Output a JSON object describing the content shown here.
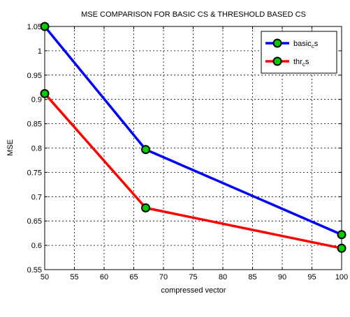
{
  "chart_data": {
    "type": "line",
    "title": "MSE COMPARISON FOR BASIC CS & THRESHOLD BASED CS",
    "xlabel": "compressed vector",
    "ylabel": "MSE",
    "xlim": [
      50,
      100
    ],
    "ylim": [
      0.55,
      1.05
    ],
    "xticks": [
      50,
      55,
      60,
      65,
      70,
      75,
      80,
      85,
      90,
      95,
      100
    ],
    "yticks": [
      0.55,
      0.6,
      0.65,
      0.7,
      0.75,
      0.8,
      0.85,
      0.9,
      0.95,
      1,
      1.05
    ],
    "grid": true,
    "legend_position": "top-right",
    "marker_fill": "#00cc00",
    "marker_edge": "#000000",
    "series": [
      {
        "name_main": "basic",
        "name_sub": "c",
        "name_end": "s",
        "color": "#0000ff",
        "x": [
          50,
          67,
          100
        ],
        "y": [
          1.05,
          0.797,
          0.622
        ]
      },
      {
        "name_main": "thr",
        "name_sub": "c",
        "name_end": "s",
        "color": "#ff0000",
        "x": [
          50,
          67,
          100
        ],
        "y": [
          0.912,
          0.677,
          0.594
        ]
      }
    ]
  }
}
